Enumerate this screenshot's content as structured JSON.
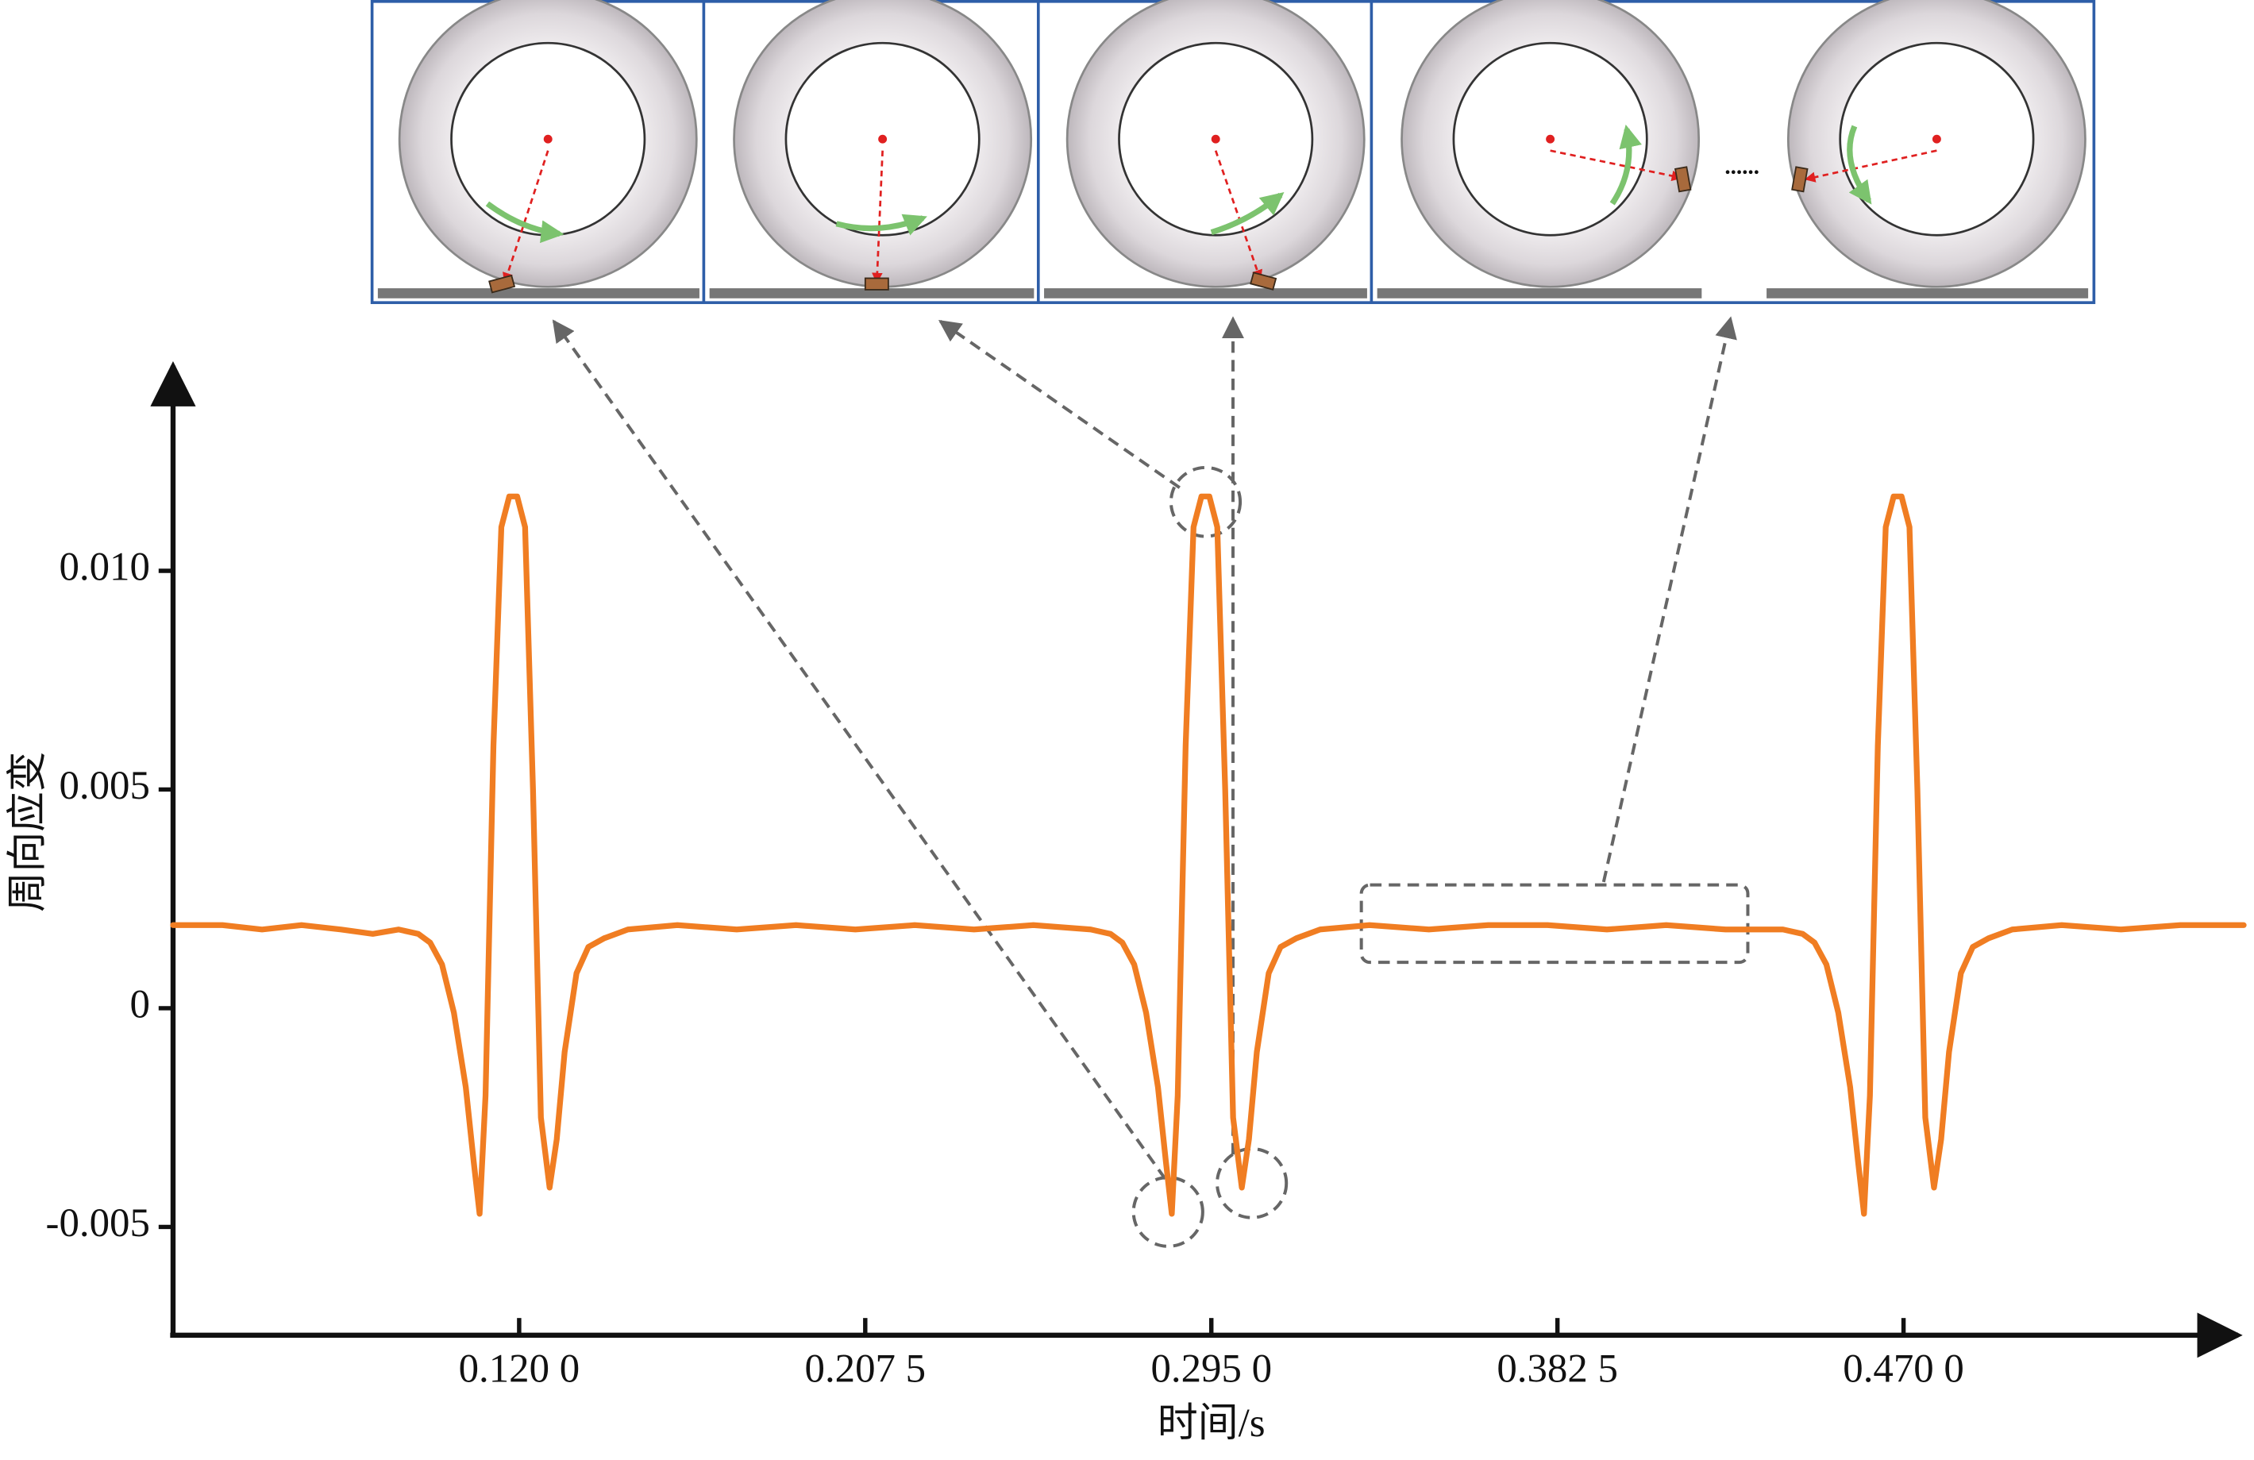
{
  "chart_data": {
    "type": "line",
    "x_label": "时间/s",
    "y_label": "周向应变",
    "color": "#f07d22",
    "xlim": [
      0.0325,
      0.557
    ],
    "ylim": [
      -0.0074,
      0.015
    ],
    "xticks": [
      {
        "value": 0.12,
        "label": "0.120 0"
      },
      {
        "value": 0.2075,
        "label": "0.207 5"
      },
      {
        "value": 0.295,
        "label": "0.295 0"
      },
      {
        "value": 0.3825,
        "label": "0.382 5"
      },
      {
        "value": 0.47,
        "label": "0.470 0"
      }
    ],
    "yticks": [
      {
        "value": 0.01,
        "label": "0.010"
      },
      0.005,
      0,
      -0.005
    ],
    "x": [
      0.0325,
      0.045,
      0.055,
      0.065,
      0.075,
      0.083,
      0.0895,
      0.0945,
      0.0975,
      0.1005,
      0.1035,
      0.1065,
      0.1085,
      0.11,
      0.1115,
      0.1135,
      0.1155,
      0.1175,
      0.1195,
      0.1215,
      0.1235,
      0.1255,
      0.1277,
      0.1295,
      0.1315,
      0.1345,
      0.1375,
      0.1415,
      0.1475,
      0.16,
      0.175,
      0.19,
      0.205,
      0.22,
      0.235,
      0.25,
      0.2645,
      0.2695,
      0.2725,
      0.2755,
      0.2785,
      0.2815,
      0.2835,
      0.285,
      0.2865,
      0.2885,
      0.2905,
      0.2925,
      0.2945,
      0.2965,
      0.2985,
      0.3005,
      0.3027,
      0.3045,
      0.3065,
      0.3095,
      0.3125,
      0.3165,
      0.3225,
      0.335,
      0.35,
      0.365,
      0.38,
      0.395,
      0.41,
      0.425,
      0.4395,
      0.4445,
      0.4475,
      0.4505,
      0.4535,
      0.4565,
      0.4585,
      0.46,
      0.4615,
      0.4635,
      0.4655,
      0.4675,
      0.4695,
      0.4715,
      0.4735,
      0.4755,
      0.4777,
      0.4795,
      0.4815,
      0.4845,
      0.4875,
      0.4915,
      0.4975,
      0.51,
      0.525,
      0.54,
      0.556
    ],
    "values": [
      0.0019,
      0.0019,
      0.0018,
      0.0019,
      0.0018,
      0.0017,
      0.0018,
      0.0017,
      0.0015,
      0.001,
      -0.0001,
      -0.0018,
      -0.0035,
      -0.0047,
      -0.002,
      0.006,
      0.011,
      0.0117,
      0.0117,
      0.011,
      0.005,
      -0.0025,
      -0.0041,
      -0.003,
      -0.001,
      0.0008,
      0.0014,
      0.0016,
      0.0018,
      0.0019,
      0.0018,
      0.0019,
      0.0018,
      0.0019,
      0.0018,
      0.0019,
      0.0018,
      0.0017,
      0.0015,
      0.001,
      -0.0001,
      -0.0018,
      -0.0035,
      -0.0047,
      -0.002,
      0.006,
      0.011,
      0.0117,
      0.0117,
      0.011,
      0.005,
      -0.0025,
      -0.0041,
      -0.003,
      -0.001,
      0.0008,
      0.0014,
      0.0016,
      0.0018,
      0.0019,
      0.0018,
      0.0019,
      0.0019,
      0.0018,
      0.0019,
      0.0018,
      0.0018,
      0.0017,
      0.0015,
      0.001,
      -0.0001,
      -0.0018,
      -0.0035,
      -0.0047,
      -0.002,
      0.006,
      0.011,
      0.0117,
      0.0117,
      0.011,
      0.005,
      -0.0025,
      -0.0041,
      -0.003,
      -0.001,
      0.0008,
      0.0014,
      0.0016,
      0.0018,
      0.0019,
      0.0018,
      0.0019,
      0.0019
    ]
  }
}
